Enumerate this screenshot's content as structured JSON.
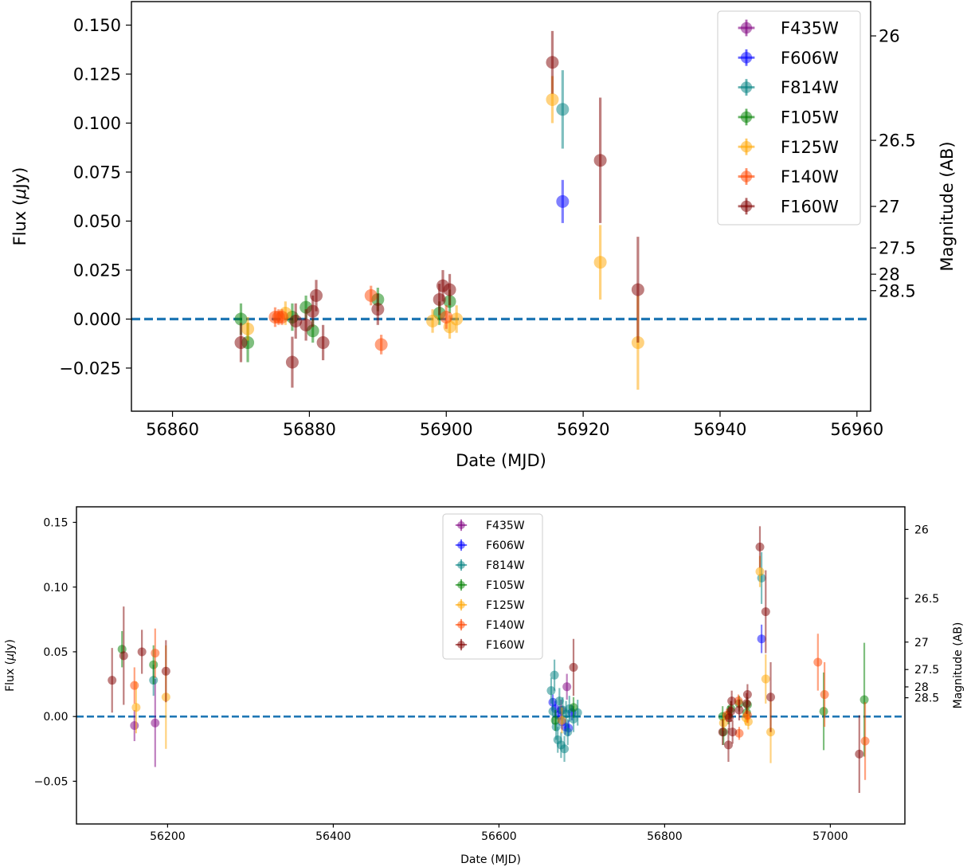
{
  "colors": {
    "F435W": "#800080",
    "F606W": "#0000ff",
    "F814W": "#008080",
    "F105W": "#008000",
    "F125W": "#ffa500",
    "F140W": "#ff4500",
    "F160W": "#800000",
    "zero_line": "#1f77b4"
  },
  "chart_data": [
    {
      "type": "scatter",
      "xlabel": "Date (MJD)",
      "ylabel": "Flux ($\\mu$Jy)",
      "y2label": "Magnitude (AB)",
      "xlim": [
        56854,
        56962
      ],
      "ylim": [
        -0.047,
        0.162
      ],
      "xticks": [
        56860,
        56880,
        56900,
        56920,
        56940,
        56960
      ],
      "xtick_labels": [
        "56860",
        "56880",
        "56900",
        "56920",
        "56940",
        "56960"
      ],
      "yticks": [
        -0.025,
        0.0,
        0.025,
        0.05,
        0.075,
        0.1,
        0.125,
        0.15
      ],
      "ytick_labels": [
        "−0.025",
        "0.000",
        "0.025",
        "0.050",
        "0.075",
        "0.100",
        "0.125",
        "0.150"
      ],
      "y2ticks": [
        {
          "label": "26",
          "flux": 0.1445
        },
        {
          "label": "26.5",
          "flux": 0.0912
        },
        {
          "label": "27",
          "flux": 0.0575
        },
        {
          "label": "27.5",
          "flux": 0.0363
        },
        {
          "label": "28",
          "flux": 0.0229
        },
        {
          "label": "28.5",
          "flux": 0.0145
        }
      ],
      "legend_position": "top-right",
      "reference_line": {
        "y": 0.0,
        "style": "dashed"
      },
      "series": [
        {
          "name": "F435W",
          "points": []
        },
        {
          "name": "F606W",
          "points": [
            {
              "x": 56917.0,
              "y": 0.06,
              "err": 0.011
            }
          ]
        },
        {
          "name": "F814W",
          "points": [
            {
              "x": 56917.0,
              "y": 0.107,
              "err": 0.02
            }
          ]
        },
        {
          "name": "F105W",
          "points": [
            {
              "x": 56870.0,
              "y": 0.0,
              "err": 0.008
            },
            {
              "x": 56871.0,
              "y": -0.012,
              "err": 0.01
            },
            {
              "x": 56877.5,
              "y": 0.001,
              "err": 0.007
            },
            {
              "x": 56879.5,
              "y": 0.006,
              "err": 0.006
            },
            {
              "x": 56880.5,
              "y": -0.006,
              "err": 0.006
            },
            {
              "x": 56890.0,
              "y": 0.01,
              "err": 0.006
            },
            {
              "x": 56899.0,
              "y": 0.003,
              "err": 0.006
            },
            {
              "x": 56900.5,
              "y": 0.009,
              "err": 0.006
            }
          ]
        },
        {
          "name": "F125W",
          "points": [
            {
              "x": 56871.0,
              "y": -0.005,
              "err": 0.006
            },
            {
              "x": 56876.5,
              "y": 0.003,
              "err": 0.006
            },
            {
              "x": 56898.0,
              "y": -0.001,
              "err": 0.006
            },
            {
              "x": 56900.5,
              "y": -0.004,
              "err": 0.006
            },
            {
              "x": 56901.5,
              "y": 0.0,
              "err": 0.007
            },
            {
              "x": 56915.5,
              "y": 0.112,
              "err": 0.012
            },
            {
              "x": 56922.5,
              "y": 0.029,
              "err": 0.019
            },
            {
              "x": 56928.0,
              "y": -0.012,
              "err": 0.024
            }
          ]
        },
        {
          "name": "F140W",
          "points": [
            {
              "x": 56875.0,
              "y": 0.001,
              "err": 0.005
            },
            {
              "x": 56875.5,
              "y": 0.001,
              "err": 0.004
            },
            {
              "x": 56876.0,
              "y": 0.001,
              "err": 0.004
            },
            {
              "x": 56889.0,
              "y": 0.012,
              "err": 0.005
            },
            {
              "x": 56890.5,
              "y": -0.013,
              "err": 0.005
            },
            {
              "x": 56900.0,
              "y": 0.001,
              "err": 0.006
            }
          ]
        },
        {
          "name": "F160W",
          "points": [
            {
              "x": 56870.0,
              "y": -0.012,
              "err": 0.01
            },
            {
              "x": 56877.5,
              "y": -0.022,
              "err": 0.013
            },
            {
              "x": 56878.0,
              "y": -0.001,
              "err": 0.009
            },
            {
              "x": 56879.5,
              "y": -0.003,
              "err": 0.008
            },
            {
              "x": 56880.5,
              "y": 0.004,
              "err": 0.008
            },
            {
              "x": 56881.0,
              "y": 0.012,
              "err": 0.008
            },
            {
              "x": 56882.0,
              "y": -0.012,
              "err": 0.009
            },
            {
              "x": 56890.0,
              "y": 0.005,
              "err": 0.008
            },
            {
              "x": 56899.0,
              "y": 0.01,
              "err": 0.008
            },
            {
              "x": 56899.5,
              "y": 0.017,
              "err": 0.008
            },
            {
              "x": 56900.5,
              "y": 0.015,
              "err": 0.008
            },
            {
              "x": 56915.5,
              "y": 0.131,
              "err": 0.016
            },
            {
              "x": 56922.5,
              "y": 0.081,
              "err": 0.032
            },
            {
              "x": 56928.0,
              "y": 0.015,
              "err": 0.027
            }
          ]
        }
      ]
    },
    {
      "type": "scatter",
      "xlabel": "Date (MJD)",
      "ylabel": "Flux ($\\mu$Jy)",
      "y2label": "Magnitude (AB)",
      "xlim": [
        56090,
        57090
      ],
      "ylim": [
        -0.083,
        0.162
      ],
      "xticks": [
        56200,
        56400,
        56600,
        56800,
        57000
      ],
      "xtick_labels": [
        "56200",
        "56400",
        "56600",
        "56800",
        "57000"
      ],
      "yticks": [
        -0.05,
        0.0,
        0.05,
        0.1,
        0.15
      ],
      "ytick_labels": [
        "−0.05",
        "0.00",
        "0.05",
        "0.10",
        "0.15"
      ],
      "y2ticks": [
        {
          "label": "26",
          "flux": 0.1445
        },
        {
          "label": "26.5",
          "flux": 0.0912
        },
        {
          "label": "27",
          "flux": 0.0575
        },
        {
          "label": "27.5",
          "flux": 0.0363
        },
        {
          "label": "28",
          "flux": 0.0229
        },
        {
          "label": "28.5",
          "flux": 0.0145
        }
      ],
      "legend_position": "top-center",
      "reference_line": {
        "y": 0.0,
        "style": "dashed"
      },
      "series": [
        {
          "name": "F435W",
          "points": [
            {
              "x": 56160,
              "y": -0.007,
              "err": 0.012
            },
            {
              "x": 56185,
              "y": -0.005,
              "err": 0.034
            },
            {
              "x": 56682,
              "y": 0.023,
              "err": 0.01
            },
            {
              "x": 56675,
              "y": 0.005,
              "err": 0.008
            }
          ]
        },
        {
          "name": "F606W",
          "points": [
            {
              "x": 56665,
              "y": 0.011,
              "err": 0.006
            },
            {
              "x": 56668,
              "y": 0.006,
              "err": 0.006
            },
            {
              "x": 56672,
              "y": 0.001,
              "err": 0.006
            },
            {
              "x": 56676,
              "y": -0.004,
              "err": 0.006
            },
            {
              "x": 56680,
              "y": -0.008,
              "err": 0.006
            },
            {
              "x": 56684,
              "y": -0.009,
              "err": 0.006
            },
            {
              "x": 56688,
              "y": 0.003,
              "err": 0.006
            },
            {
              "x": 56917,
              "y": 0.06,
              "err": 0.011
            }
          ]
        },
        {
          "name": "F814W",
          "points": [
            {
              "x": 56183,
              "y": 0.028,
              "err": 0.012
            },
            {
              "x": 56663,
              "y": 0.02,
              "err": 0.01
            },
            {
              "x": 56665,
              "y": 0.004,
              "err": 0.01
            },
            {
              "x": 56667,
              "y": 0.032,
              "err": 0.012
            },
            {
              "x": 56669,
              "y": -0.008,
              "err": 0.01
            },
            {
              "x": 56671,
              "y": -0.018,
              "err": 0.01
            },
            {
              "x": 56673,
              "y": 0.012,
              "err": 0.01
            },
            {
              "x": 56675,
              "y": -0.022,
              "err": 0.01
            },
            {
              "x": 56677,
              "y": 0.005,
              "err": 0.01
            },
            {
              "x": 56679,
              "y": -0.025,
              "err": 0.01
            },
            {
              "x": 56681,
              "y": 0.002,
              "err": 0.01
            },
            {
              "x": 56683,
              "y": -0.012,
              "err": 0.01
            },
            {
              "x": 56685,
              "y": 0.006,
              "err": 0.01
            },
            {
              "x": 56690,
              "y": -0.002,
              "err": 0.01
            },
            {
              "x": 56695,
              "y": 0.003,
              "err": 0.01
            },
            {
              "x": 56917,
              "y": 0.107,
              "err": 0.02
            }
          ]
        },
        {
          "name": "F105W",
          "points": [
            {
              "x": 56145,
              "y": 0.052,
              "err": 0.014
            },
            {
              "x": 56183,
              "y": 0.04,
              "err": 0.015
            },
            {
              "x": 56668,
              "y": -0.003,
              "err": 0.008
            },
            {
              "x": 56690,
              "y": 0.007,
              "err": 0.008
            },
            {
              "x": 56870,
              "y": 0.0,
              "err": 0.008
            },
            {
              "x": 56871,
              "y": -0.012,
              "err": 0.01
            },
            {
              "x": 56877,
              "y": 0.001,
              "err": 0.007
            },
            {
              "x": 56880,
              "y": 0.006,
              "err": 0.006
            },
            {
              "x": 56890,
              "y": 0.01,
              "err": 0.006
            },
            {
              "x": 56899,
              "y": 0.003,
              "err": 0.006
            },
            {
              "x": 56900,
              "y": 0.009,
              "err": 0.006
            },
            {
              "x": 56992,
              "y": 0.004,
              "err": 0.03
            },
            {
              "x": 57041,
              "y": 0.013,
              "err": 0.044
            }
          ]
        },
        {
          "name": "F125W",
          "points": [
            {
              "x": 56162,
              "y": 0.007,
              "err": 0.02
            },
            {
              "x": 56198,
              "y": 0.015,
              "err": 0.04
            },
            {
              "x": 56676,
              "y": -0.003,
              "err": 0.01
            },
            {
              "x": 56871,
              "y": -0.005,
              "err": 0.006
            },
            {
              "x": 56898,
              "y": -0.001,
              "err": 0.006
            },
            {
              "x": 56901,
              "y": -0.004,
              "err": 0.006
            },
            {
              "x": 56915,
              "y": 0.112,
              "err": 0.012
            },
            {
              "x": 56922,
              "y": 0.029,
              "err": 0.019
            },
            {
              "x": 56928,
              "y": -0.012,
              "err": 0.024
            }
          ]
        },
        {
          "name": "F140W",
          "points": [
            {
              "x": 56160,
              "y": 0.024,
              "err": 0.014
            },
            {
              "x": 56185,
              "y": 0.049,
              "err": 0.019
            },
            {
              "x": 56875,
              "y": 0.001,
              "err": 0.005
            },
            {
              "x": 56889,
              "y": 0.012,
              "err": 0.005
            },
            {
              "x": 56890,
              "y": -0.013,
              "err": 0.005
            },
            {
              "x": 56900,
              "y": 0.001,
              "err": 0.006
            },
            {
              "x": 56985,
              "y": 0.042,
              "err": 0.022
            },
            {
              "x": 56993,
              "y": 0.017,
              "err": 0.025
            },
            {
              "x": 57042,
              "y": -0.019,
              "err": 0.03
            }
          ]
        },
        {
          "name": "F160W",
          "points": [
            {
              "x": 56133,
              "y": 0.028,
              "err": 0.025
            },
            {
              "x": 56147,
              "y": 0.047,
              "err": 0.038
            },
            {
              "x": 56169,
              "y": 0.05,
              "err": 0.017
            },
            {
              "x": 56198,
              "y": 0.035,
              "err": 0.024
            },
            {
              "x": 56690,
              "y": 0.038,
              "err": 0.022
            },
            {
              "x": 56870,
              "y": -0.012,
              "err": 0.01
            },
            {
              "x": 56877,
              "y": -0.022,
              "err": 0.013
            },
            {
              "x": 56878,
              "y": -0.001,
              "err": 0.009
            },
            {
              "x": 56880,
              "y": 0.004,
              "err": 0.008
            },
            {
              "x": 56881,
              "y": 0.012,
              "err": 0.008
            },
            {
              "x": 56882,
              "y": -0.012,
              "err": 0.009
            },
            {
              "x": 56890,
              "y": 0.005,
              "err": 0.008
            },
            {
              "x": 56899,
              "y": 0.01,
              "err": 0.008
            },
            {
              "x": 56900,
              "y": 0.017,
              "err": 0.008
            },
            {
              "x": 56915,
              "y": 0.131,
              "err": 0.016
            },
            {
              "x": 56922,
              "y": 0.081,
              "err": 0.032
            },
            {
              "x": 56928,
              "y": 0.015,
              "err": 0.027
            },
            {
              "x": 57035,
              "y": -0.029,
              "err": 0.03
            }
          ]
        }
      ]
    }
  ]
}
